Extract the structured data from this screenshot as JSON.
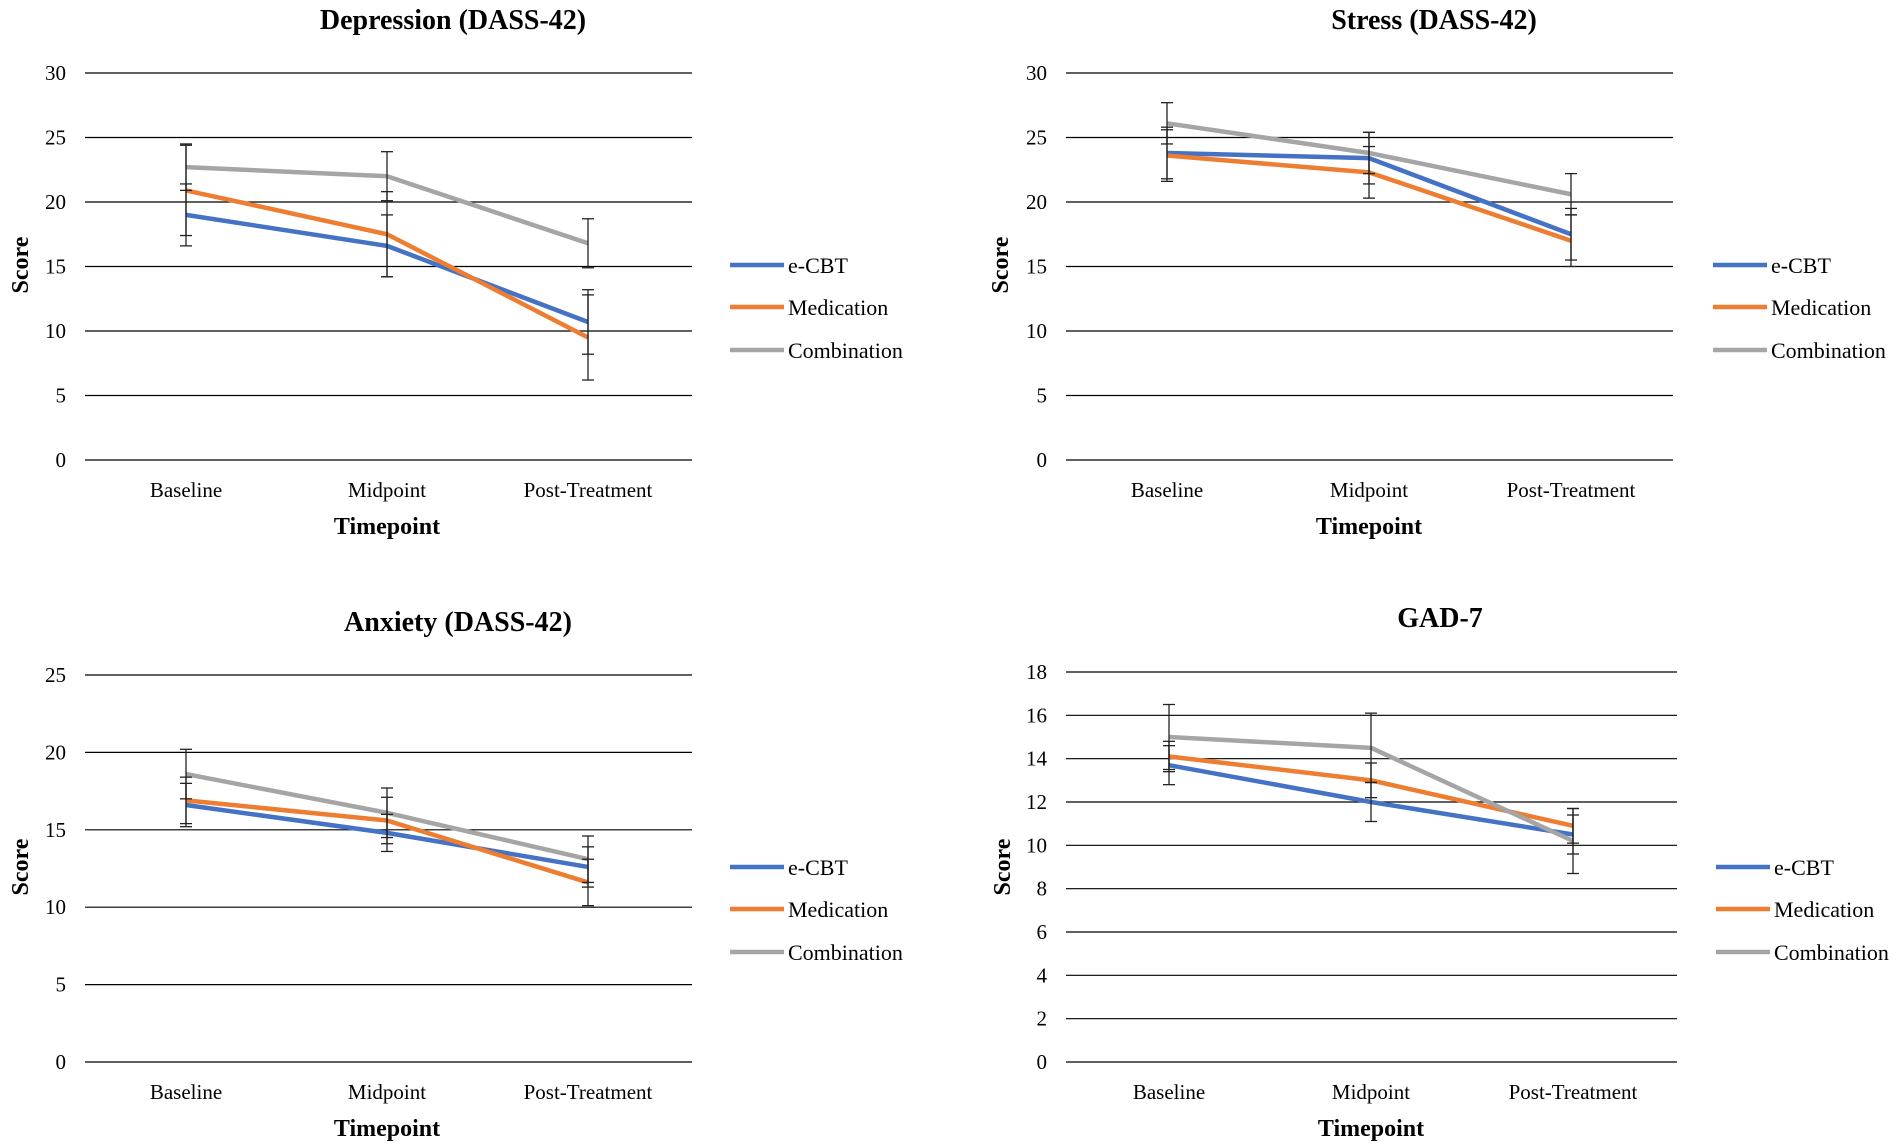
{
  "chart_data": [
    {
      "type": "line",
      "title": "Depression (DASS-42)",
      "xlabel": "Timepoint",
      "ylabel": "Score",
      "categories": [
        "Baseline",
        "Midpoint",
        "Post-Treatment"
      ],
      "ylim": [
        0,
        30
      ],
      "yticks": [
        0,
        5,
        10,
        15,
        20,
        25,
        30
      ],
      "grid": true,
      "legend": "right",
      "series": [
        {
          "name": "e-CBT",
          "color": "#4472C4",
          "values": [
            19.0,
            16.6,
            10.7
          ],
          "errors": [
            2.4,
            2.4,
            2.5
          ]
        },
        {
          "name": "Medication",
          "color": "#ED7D31",
          "values": [
            20.9,
            17.5,
            9.5
          ],
          "errors": [
            3.5,
            3.3,
            3.3
          ]
        },
        {
          "name": "Combination",
          "color": "#A5A5A5",
          "values": [
            22.7,
            22.0,
            16.8
          ],
          "errors": [
            1.8,
            1.9,
            1.9
          ]
        }
      ]
    },
    {
      "type": "line",
      "title": "Stress (DASS-42)",
      "xlabel": "Timepoint",
      "ylabel": "Score",
      "categories": [
        "Baseline",
        "Midpoint",
        "Post-Treatment"
      ],
      "ylim": [
        0,
        30
      ],
      "yticks": [
        0,
        5,
        10,
        15,
        20,
        25,
        30
      ],
      "grid": true,
      "legend": "right",
      "series": [
        {
          "name": "e-CBT",
          "color": "#4472C4",
          "values": [
            23.8,
            23.4,
            17.5
          ],
          "errors": [
            2.0,
            2.0,
            2.0
          ]
        },
        {
          "name": "Medication",
          "color": "#ED7D31",
          "values": [
            23.6,
            22.3,
            17.0
          ],
          "errors": [
            2.0,
            2.0,
            2.0
          ]
        },
        {
          "name": "Combination",
          "color": "#A5A5A5",
          "values": [
            26.1,
            23.8,
            20.6
          ],
          "errors": [
            1.6,
            1.6,
            1.6
          ]
        }
      ]
    },
    {
      "type": "line",
      "title": "Anxiety (DASS-42)",
      "xlabel": "Timepoint",
      "ylabel": "Score",
      "categories": [
        "Baseline",
        "Midpoint",
        "Post-Treatment"
      ],
      "ylim": [
        0,
        25
      ],
      "yticks": [
        0,
        5,
        10,
        15,
        20,
        25
      ],
      "grid": true,
      "legend": "right",
      "series": [
        {
          "name": "e-CBT",
          "color": "#4472C4",
          "values": [
            16.6,
            14.8,
            12.6
          ],
          "errors": [
            1.4,
            1.2,
            1.3
          ]
        },
        {
          "name": "Medication",
          "color": "#ED7D31",
          "values": [
            16.9,
            15.6,
            11.6
          ],
          "errors": [
            1.5,
            1.5,
            1.5
          ]
        },
        {
          "name": "Combination",
          "color": "#A5A5A5",
          "values": [
            18.6,
            16.1,
            13.1
          ],
          "errors": [
            1.6,
            1.6,
            1.5
          ]
        }
      ]
    },
    {
      "type": "line",
      "title": "GAD-7",
      "xlabel": "Timepoint",
      "ylabel": "Score",
      "categories": [
        "Baseline",
        "Midpoint",
        "Post-Treatment"
      ],
      "ylim": [
        0,
        18
      ],
      "yticks": [
        0,
        2,
        4,
        6,
        8,
        10,
        12,
        14,
        16,
        18
      ],
      "grid": true,
      "legend": "right",
      "series": [
        {
          "name": "e-CBT",
          "color": "#4472C4",
          "values": [
            13.7,
            12.0,
            10.5
          ],
          "errors": [
            0.9,
            0.9,
            0.9
          ]
        },
        {
          "name": "Medication",
          "color": "#ED7D31",
          "values": [
            14.1,
            13.0,
            10.9
          ],
          "errors": [
            0.7,
            0.8,
            0.8
          ]
        },
        {
          "name": "Combination",
          "color": "#A5A5A5",
          "values": [
            15.0,
            14.5,
            10.2
          ],
          "errors": [
            1.5,
            1.6,
            1.5
          ]
        }
      ]
    }
  ]
}
